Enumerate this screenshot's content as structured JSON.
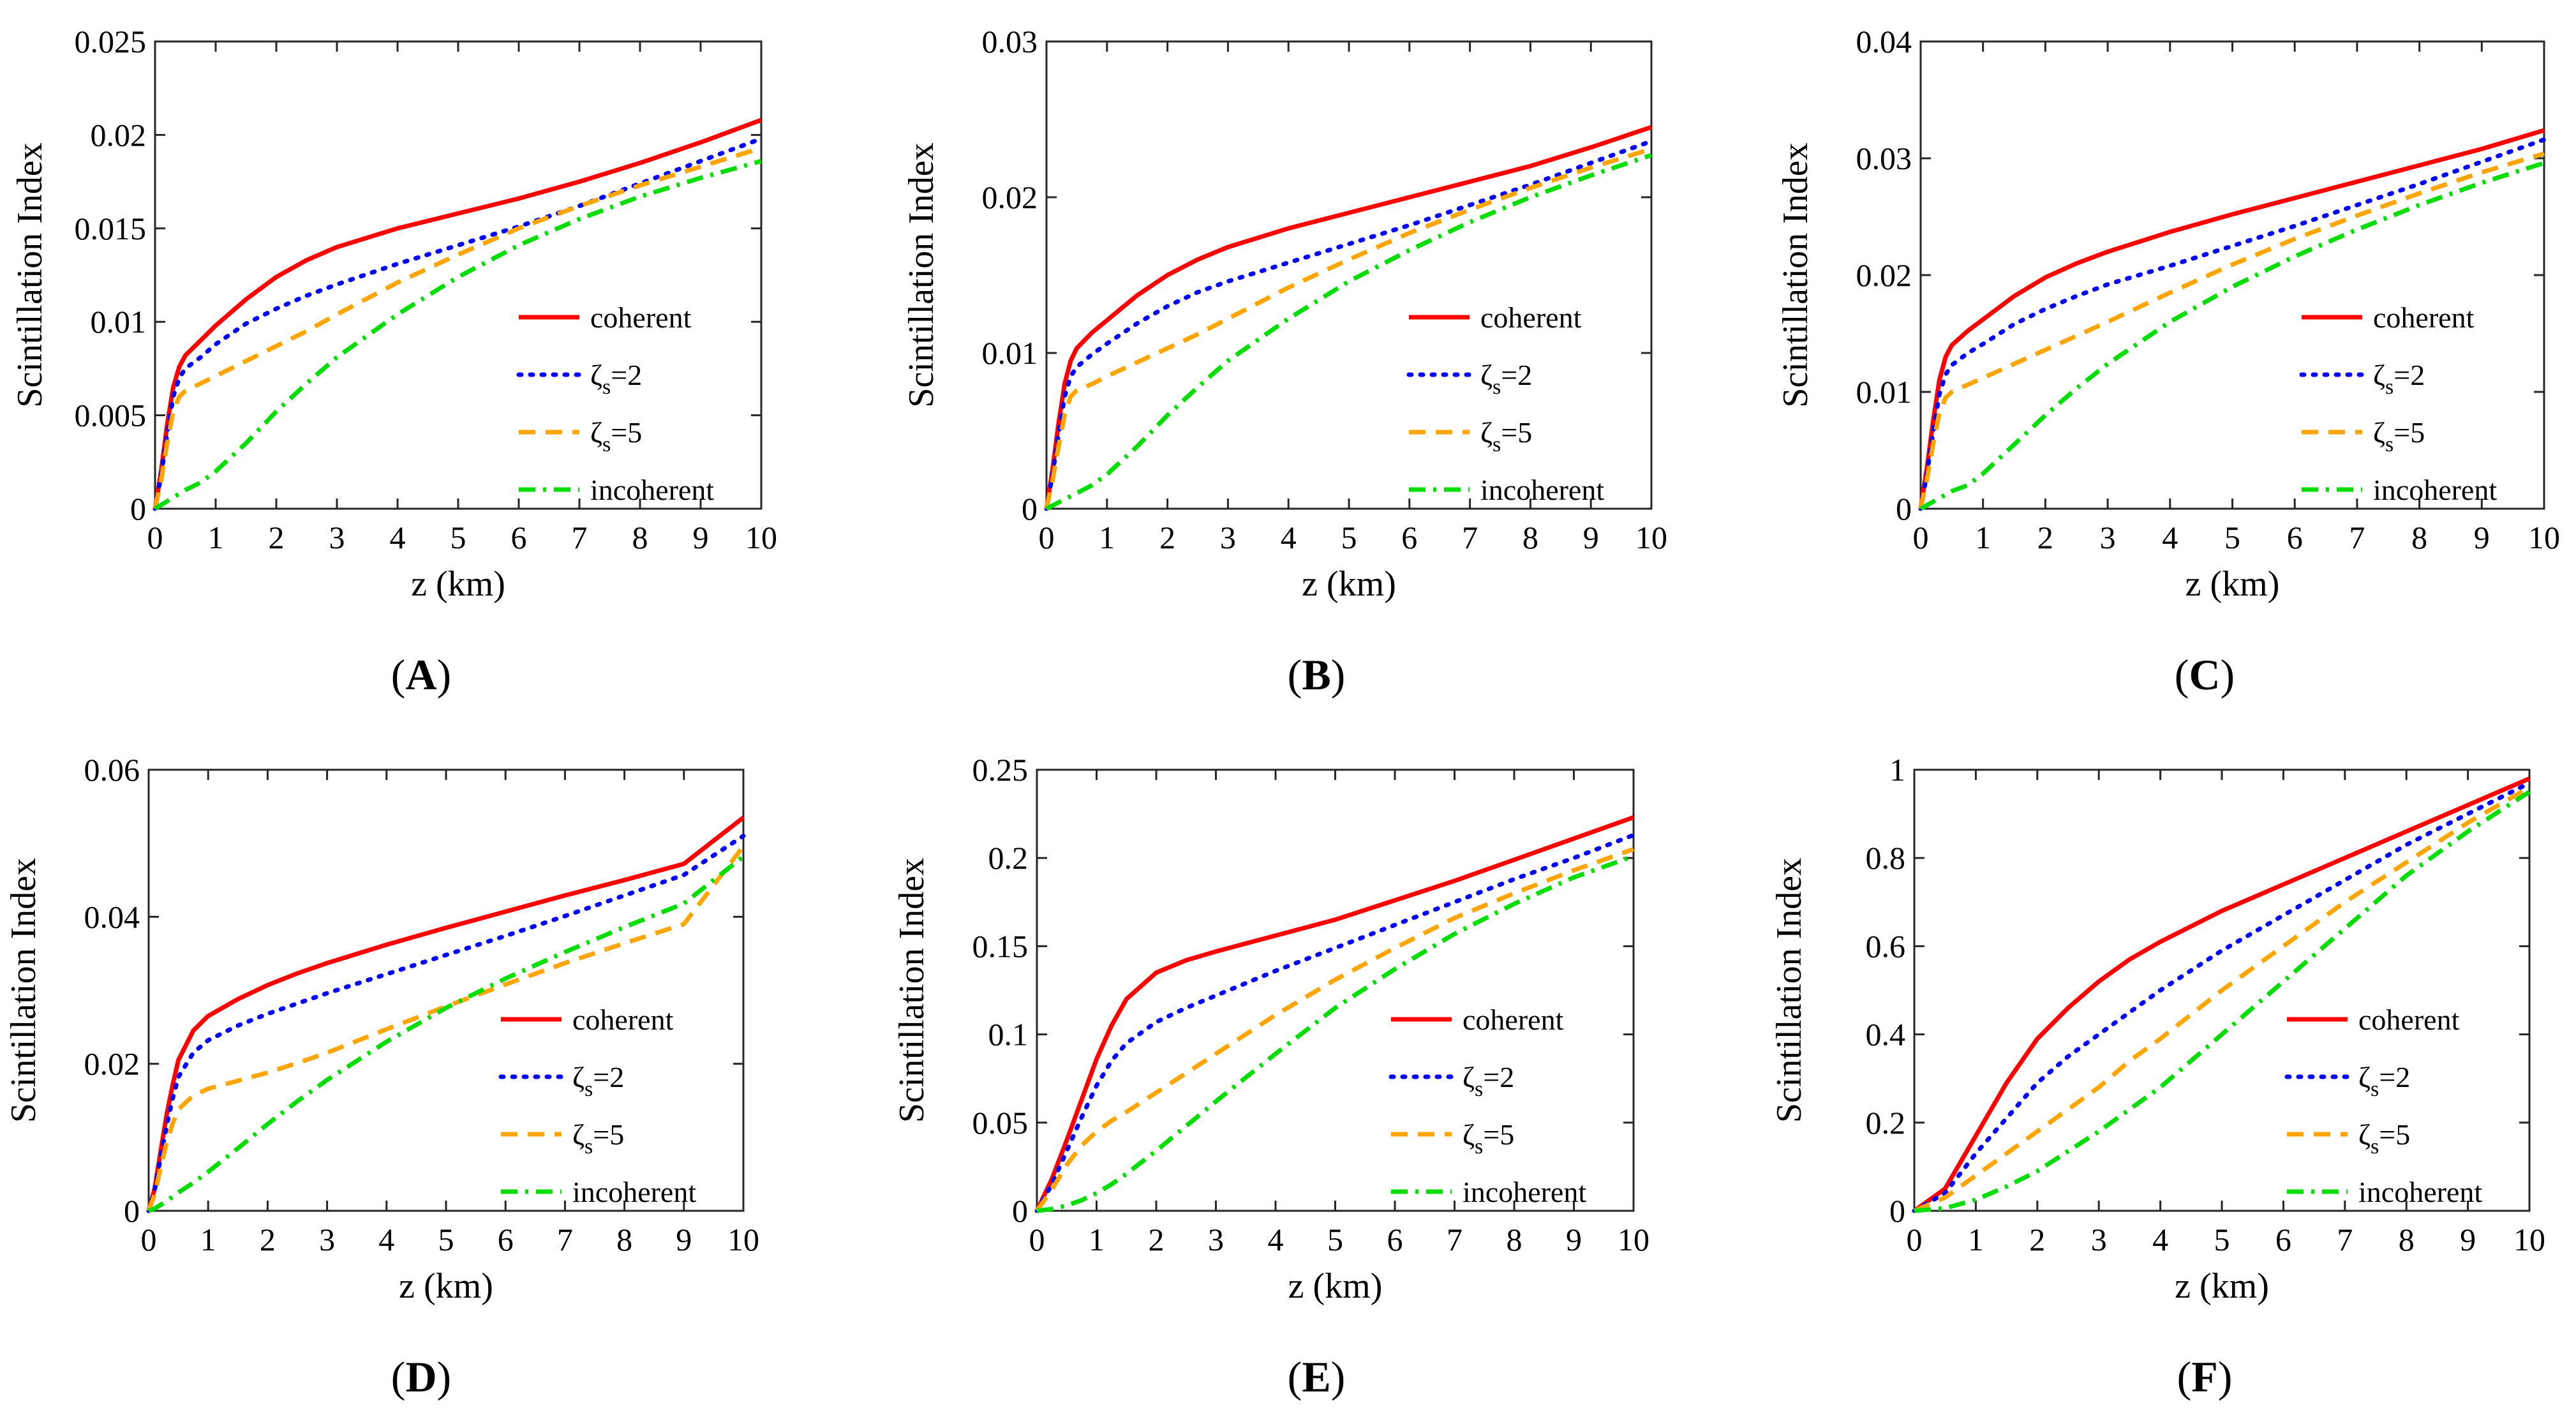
{
  "figure": {
    "x_label": "z (km)",
    "y_label": "Scintillation Index",
    "legend": [
      "coherent",
      "ζ_s=2",
      "ζ_s=5",
      "incoherent"
    ]
  },
  "series_styles": [
    {
      "name": "coherent",
      "label": "coherent",
      "color": "#ff0000",
      "dash": "solid"
    },
    {
      "name": "zeta2",
      "label_main": "ζ",
      "label_sub": "s",
      "label_tail": "=2",
      "color": "#0000ff",
      "dash": "dotted"
    },
    {
      "name": "zeta5",
      "label_main": "ζ",
      "label_sub": "s",
      "label_tail": "=5",
      "color": "#ffa500",
      "dash": "dashed"
    },
    {
      "name": "incoherent",
      "label": "incoherent",
      "color": "#00dd00",
      "dash": "dashdot"
    }
  ],
  "chart_data": [
    {
      "type": "line",
      "panel": "(A)",
      "panel_letter": "A",
      "title": "",
      "xlabel": "z (km)",
      "ylabel": "Scintillation Index",
      "xlim": [
        0,
        10
      ],
      "ylim": [
        0,
        0.025
      ],
      "xticks": [
        0,
        1,
        2,
        3,
        4,
        5,
        6,
        7,
        8,
        9,
        10
      ],
      "xtick_labels": [
        "0",
        "1",
        "2",
        "3",
        "4",
        "5",
        "6",
        "7",
        "8",
        "9",
        "10"
      ],
      "yticks": [
        0,
        0.005,
        0.01,
        0.015,
        0.02,
        0.025
      ],
      "ytick_labels": [
        "0",
        "0.005",
        "0.01",
        "0.015",
        "0.02",
        "0.025"
      ],
      "legend_position": "lower-right",
      "x": [
        0,
        0.1,
        0.2,
        0.3,
        0.4,
        0.5,
        0.75,
        1,
        1.5,
        2,
        2.5,
        3,
        4,
        5,
        6,
        7,
        8,
        9,
        10
      ],
      "series": [
        {
          "name": "coherent",
          "values": [
            0,
            0.002,
            0.0045,
            0.0065,
            0.0076,
            0.0082,
            0.009,
            0.0098,
            0.0112,
            0.0124,
            0.0133,
            0.014,
            0.015,
            0.0158,
            0.0166,
            0.0175,
            0.0185,
            0.0196,
            0.0208
          ]
        },
        {
          "name": "zeta2",
          "values": [
            0,
            0.0018,
            0.004,
            0.006,
            0.007,
            0.0075,
            0.0081,
            0.0088,
            0.0099,
            0.0107,
            0.0114,
            0.012,
            0.0131,
            0.0141,
            0.0151,
            0.0162,
            0.0174,
            0.0186,
            0.0198
          ]
        },
        {
          "name": "zeta5",
          "values": [
            0,
            0.0015,
            0.0035,
            0.0052,
            0.006,
            0.0063,
            0.0067,
            0.0071,
            0.0079,
            0.0087,
            0.0095,
            0.0104,
            0.0121,
            0.0136,
            0.015,
            0.0162,
            0.0173,
            0.0183,
            0.0193
          ]
        },
        {
          "name": "incoherent",
          "values": [
            0,
            0.0002,
            0.0004,
            0.0006,
            0.0008,
            0.001,
            0.0014,
            0.002,
            0.0035,
            0.0052,
            0.0067,
            0.0081,
            0.0104,
            0.0124,
            0.0141,
            0.0155,
            0.0167,
            0.0177,
            0.0186
          ]
        }
      ]
    },
    {
      "type": "line",
      "panel": "(B)",
      "panel_letter": "B",
      "title": "",
      "xlabel": "z (km)",
      "ylabel": "Scintillation Index",
      "xlim": [
        0,
        10
      ],
      "ylim": [
        0,
        0.03
      ],
      "xticks": [
        0,
        1,
        2,
        3,
        4,
        5,
        6,
        7,
        8,
        9,
        10
      ],
      "xtick_labels": [
        "0",
        "1",
        "2",
        "3",
        "4",
        "5",
        "6",
        "7",
        "8",
        "9",
        "10"
      ],
      "yticks": [
        0,
        0.01,
        0.02,
        0.03
      ],
      "ytick_labels": [
        "0",
        "0.01",
        "0.02",
        "0.03"
      ],
      "legend_position": "lower-right",
      "x": [
        0,
        0.1,
        0.2,
        0.3,
        0.4,
        0.5,
        0.75,
        1,
        1.5,
        2,
        2.5,
        3,
        4,
        5,
        6,
        7,
        8,
        9,
        10
      ],
      "series": [
        {
          "name": "coherent",
          "values": [
            0,
            0.0025,
            0.0055,
            0.008,
            0.0095,
            0.0103,
            0.0113,
            0.0121,
            0.0137,
            0.015,
            0.016,
            0.0168,
            0.018,
            0.019,
            0.02,
            0.021,
            0.022,
            0.0232,
            0.0245
          ]
        },
        {
          "name": "zeta2",
          "values": [
            0,
            0.0022,
            0.0048,
            0.0072,
            0.0085,
            0.0091,
            0.0099,
            0.0106,
            0.0119,
            0.013,
            0.0139,
            0.0146,
            0.0158,
            0.017,
            0.0182,
            0.0195,
            0.0208,
            0.0222,
            0.0236
          ]
        },
        {
          "name": "zeta5",
          "values": [
            0,
            0.0018,
            0.004,
            0.006,
            0.0072,
            0.0076,
            0.008,
            0.0085,
            0.0094,
            0.0103,
            0.0112,
            0.0122,
            0.0142,
            0.016,
            0.0177,
            0.0192,
            0.0206,
            0.0219,
            0.0231
          ]
        },
        {
          "name": "incoherent",
          "values": [
            0,
            0.0002,
            0.0004,
            0.0006,
            0.0008,
            0.001,
            0.0015,
            0.0022,
            0.004,
            0.006,
            0.0078,
            0.0095,
            0.0122,
            0.0146,
            0.0166,
            0.0184,
            0.02,
            0.0214,
            0.0227
          ]
        }
      ]
    },
    {
      "type": "line",
      "panel": "(C)",
      "panel_letter": "C",
      "title": "",
      "xlabel": "z (km)",
      "ylabel": "Scintillation Index",
      "xlim": [
        0,
        10
      ],
      "ylim": [
        0,
        0.04
      ],
      "xticks": [
        0,
        1,
        2,
        3,
        4,
        5,
        6,
        7,
        8,
        9,
        10
      ],
      "xtick_labels": [
        "0",
        "1",
        "2",
        "3",
        "4",
        "5",
        "6",
        "7",
        "8",
        "9",
        "10"
      ],
      "yticks": [
        0,
        0.01,
        0.02,
        0.03,
        0.04
      ],
      "ytick_labels": [
        "0",
        "0.01",
        "0.02",
        "0.03",
        "0.04"
      ],
      "legend_position": "lower-right",
      "x": [
        0,
        0.1,
        0.2,
        0.3,
        0.4,
        0.5,
        0.75,
        1,
        1.5,
        2,
        2.5,
        3,
        4,
        5,
        6,
        7,
        8,
        9,
        10
      ],
      "series": [
        {
          "name": "coherent",
          "values": [
            0,
            0.0035,
            0.0075,
            0.011,
            0.013,
            0.014,
            0.0152,
            0.0162,
            0.0182,
            0.0198,
            0.021,
            0.022,
            0.0237,
            0.0252,
            0.0266,
            0.028,
            0.0294,
            0.0308,
            0.0324
          ]
        },
        {
          "name": "zeta2",
          "values": [
            0,
            0.003,
            0.0065,
            0.0098,
            0.0115,
            0.0123,
            0.0133,
            0.0141,
            0.0158,
            0.0171,
            0.0182,
            0.0192,
            0.0208,
            0.0225,
            0.0242,
            0.026,
            0.0278,
            0.0297,
            0.0316
          ]
        },
        {
          "name": "zeta5",
          "values": [
            0,
            0.0025,
            0.0055,
            0.0082,
            0.0095,
            0.01,
            0.0106,
            0.0112,
            0.0124,
            0.0136,
            0.0148,
            0.016,
            0.0185,
            0.0209,
            0.0231,
            0.0251,
            0.027,
            0.0288,
            0.0304
          ]
        },
        {
          "name": "incoherent",
          "values": [
            0,
            0.0003,
            0.0006,
            0.0009,
            0.0012,
            0.0015,
            0.002,
            0.003,
            0.0055,
            0.008,
            0.0103,
            0.0124,
            0.016,
            0.019,
            0.0216,
            0.0239,
            0.026,
            0.0279,
            0.0296
          ]
        }
      ]
    },
    {
      "type": "line",
      "panel": "(D)",
      "panel_letter": "D",
      "title": "",
      "xlabel": "z (km)",
      "ylabel": "Scintillation Index",
      "xlim": [
        0,
        10
      ],
      "ylim": [
        0,
        0.06
      ],
      "xticks": [
        0,
        1,
        2,
        3,
        4,
        5,
        6,
        7,
        8,
        9,
        10
      ],
      "xtick_labels": [
        "0",
        "1",
        "2",
        "3",
        "4",
        "5",
        "6",
        "7",
        "8",
        "9",
        "10"
      ],
      "yticks": [
        0,
        0.02,
        0.04,
        0.06
      ],
      "ytick_labels": [
        "0",
        "0.02",
        "0.04",
        "0.06"
      ],
      "legend_position": "lower-right",
      "x": [
        0,
        0.1,
        0.2,
        0.3,
        0.4,
        0.5,
        0.75,
        1,
        1.5,
        2,
        2.5,
        3,
        4,
        5,
        6,
        7,
        8,
        9,
        10
      ],
      "series": [
        {
          "name": "coherent",
          "values": [
            0,
            0.003,
            0.008,
            0.013,
            0.017,
            0.0205,
            0.0245,
            0.0265,
            0.0288,
            0.0307,
            0.0323,
            0.0337,
            0.0362,
            0.0385,
            0.0407,
            0.0429,
            0.045,
            0.0472,
            0.0535
          ]
        },
        {
          "name": "zeta2",
          "values": [
            0,
            0.0028,
            0.0072,
            0.0115,
            0.0152,
            0.0182,
            0.0215,
            0.0232,
            0.0252,
            0.0268,
            0.0282,
            0.0296,
            0.0322,
            0.0348,
            0.0374,
            0.0401,
            0.0429,
            0.0457,
            0.051
          ]
        },
        {
          "name": "zeta5",
          "values": [
            0,
            0.0022,
            0.0058,
            0.0092,
            0.0118,
            0.0138,
            0.0157,
            0.0166,
            0.0177,
            0.0188,
            0.0201,
            0.0215,
            0.0247,
            0.0278,
            0.0308,
            0.0337,
            0.0364,
            0.039,
            0.0496
          ]
        },
        {
          "name": "incoherent",
          "values": [
            0,
            0.0003,
            0.0008,
            0.0013,
            0.0019,
            0.0025,
            0.0038,
            0.0053,
            0.0085,
            0.0118,
            0.0149,
            0.0178,
            0.023,
            0.0276,
            0.0316,
            0.0352,
            0.0386,
            0.0418,
            0.0482
          ]
        }
      ]
    },
    {
      "type": "line",
      "panel": "(E)",
      "panel_letter": "E",
      "title": "",
      "xlabel": "z (km)",
      "ylabel": "Scintillation Index",
      "xlim": [
        0,
        10
      ],
      "ylim": [
        0,
        0.25
      ],
      "xticks": [
        0,
        1,
        2,
        3,
        4,
        5,
        6,
        7,
        8,
        9,
        10
      ],
      "xtick_labels": [
        "0",
        "1",
        "2",
        "3",
        "4",
        "5",
        "6",
        "7",
        "8",
        "9",
        "10"
      ],
      "yticks": [
        0,
        0.05,
        0.1,
        0.15,
        0.2,
        0.25
      ],
      "ytick_labels": [
        "0",
        "0.05",
        "0.1",
        "0.15",
        "0.2",
        "0.25"
      ],
      "legend_position": "lower-right",
      "x": [
        0,
        0.25,
        0.5,
        0.75,
        1,
        1.25,
        1.5,
        2,
        2.5,
        3,
        4,
        5,
        6,
        7,
        8,
        9,
        10
      ],
      "series": [
        {
          "name": "coherent",
          "values": [
            0,
            0.018,
            0.04,
            0.063,
            0.086,
            0.105,
            0.12,
            0.135,
            0.142,
            0.147,
            0.156,
            0.165,
            0.176,
            0.187,
            0.199,
            0.211,
            0.223
          ]
        },
        {
          "name": "zeta2",
          "values": [
            0,
            0.015,
            0.034,
            0.053,
            0.071,
            0.085,
            0.095,
            0.107,
            0.115,
            0.122,
            0.136,
            0.149,
            0.162,
            0.175,
            0.188,
            0.2,
            0.213
          ]
        },
        {
          "name": "zeta5",
          "values": [
            0,
            0.012,
            0.026,
            0.037,
            0.045,
            0.051,
            0.056,
            0.067,
            0.078,
            0.089,
            0.111,
            0.131,
            0.149,
            0.166,
            0.18,
            0.193,
            0.205
          ]
        },
        {
          "name": "incoherent",
          "values": [
            0,
            0.001,
            0.003,
            0.006,
            0.01,
            0.015,
            0.021,
            0.034,
            0.048,
            0.062,
            0.089,
            0.115,
            0.137,
            0.157,
            0.174,
            0.189,
            0.201
          ]
        }
      ]
    },
    {
      "type": "line",
      "panel": "(F)",
      "panel_letter": "F",
      "title": "",
      "xlabel": "z (km)",
      "ylabel": "Scintillation Index",
      "xlim": [
        0,
        10
      ],
      "ylim": [
        0,
        1
      ],
      "xticks": [
        0,
        1,
        2,
        3,
        4,
        5,
        6,
        7,
        8,
        9,
        10
      ],
      "xtick_labels": [
        "0",
        "1",
        "2",
        "3",
        "4",
        "5",
        "6",
        "7",
        "8",
        "9",
        "10"
      ],
      "yticks": [
        0,
        0.2,
        0.4,
        0.6,
        0.8,
        1
      ],
      "ytick_labels": [
        "0",
        "0.2",
        "0.4",
        "0.6",
        "0.8",
        "1"
      ],
      "legend_position": "lower-right",
      "x": [
        0,
        0.5,
        1,
        1.5,
        2,
        2.5,
        3,
        3.5,
        4,
        5,
        6,
        7,
        8,
        9,
        10
      ],
      "series": [
        {
          "name": "coherent",
          "values": [
            0,
            0.05,
            0.17,
            0.29,
            0.39,
            0.46,
            0.52,
            0.57,
            0.61,
            0.68,
            0.74,
            0.8,
            0.86,
            0.92,
            0.98
          ]
        },
        {
          "name": "zeta2",
          "values": [
            0,
            0.04,
            0.13,
            0.21,
            0.29,
            0.35,
            0.4,
            0.45,
            0.5,
            0.59,
            0.67,
            0.75,
            0.83,
            0.9,
            0.97
          ]
        },
        {
          "name": "zeta5",
          "values": [
            0,
            0.03,
            0.08,
            0.13,
            0.18,
            0.23,
            0.28,
            0.34,
            0.39,
            0.5,
            0.6,
            0.7,
            0.79,
            0.88,
            0.96
          ]
        },
        {
          "name": "incoherent",
          "values": [
            0,
            0.006,
            0.025,
            0.055,
            0.09,
            0.135,
            0.18,
            0.23,
            0.28,
            0.4,
            0.52,
            0.64,
            0.76,
            0.86,
            0.95
          ]
        }
      ]
    }
  ]
}
